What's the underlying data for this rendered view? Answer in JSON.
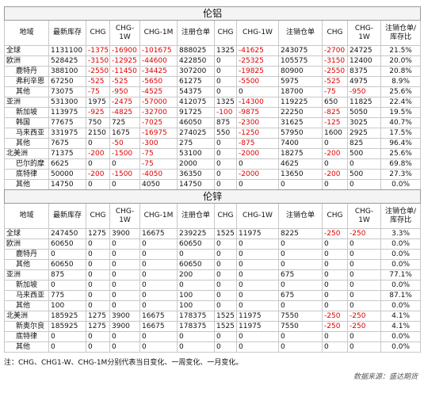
{
  "sections": [
    {
      "title": "伦铝",
      "header": [
        "地域",
        "最新库存",
        "CHG",
        "CHG-1W",
        "CHG-1M",
        "注册仓单",
        "CHG",
        "CHG-1W",
        "注销仓单",
        "CHG",
        "CHG-1W",
        "注销仓单/库存比"
      ],
      "groups": [
        {
          "rows": [
            [
              "全球",
              "1131100",
              "-1375",
              "-16900",
              "-101675",
              "888025",
              "1325",
              "-41625",
              "243075",
              "-2700",
              "24725",
              "21.5%"
            ]
          ]
        },
        {
          "rows": [
            [
              "欧洲",
              "528425",
              "-3150",
              "-12925",
              "-44600",
              "422850",
              "0",
              "-25325",
              "105575",
              "-3150",
              "12400",
              "20.0%"
            ],
            [
              "鹿特丹",
              "388100",
              "-2550",
              "-11450",
              "-34425",
              "307200",
              "0",
              "-19825",
              "80900",
              "-2550",
              "8375",
              "20.8%"
            ],
            [
              "弗利辛恩",
              "67250",
              "-525",
              "-525",
              "-5650",
              "61275",
              "0",
              "-5500",
              "5975",
              "-525",
              "4975",
              "8.9%"
            ],
            [
              "其他",
              "73075",
              "-75",
              "-950",
              "-4525",
              "54375",
              "0",
              "0",
              "18700",
              "-75",
              "-950",
              "25.6%"
            ]
          ]
        },
        {
          "rows": [
            [
              "亚洲",
              "531300",
              "1975",
              "-2475",
              "-57000",
              "412075",
              "1325",
              "-14300",
              "119225",
              "650",
              "11825",
              "22.4%"
            ],
            [
              "新加坡",
              "113975",
              "-925",
              "-4825",
              "-32700",
              "91725",
              "-100",
              "-9875",
              "22250",
              "-825",
              "5050",
              "19.5%"
            ],
            [
              "韩国",
              "77675",
              "750",
              "725",
              "-7025",
              "46050",
              "875",
              "-2300",
              "31625",
              "-125",
              "3025",
              "40.7%"
            ],
            [
              "马来西亚",
              "331975",
              "2150",
              "1675",
              "-16975",
              "274025",
              "550",
              "-1250",
              "57950",
              "1600",
              "2925",
              "17.5%"
            ],
            [
              "其他",
              "7675",
              "0",
              "-50",
              "-300",
              "275",
              "0",
              "-875",
              "7400",
              "0",
              "825",
              "96.4%"
            ]
          ]
        },
        {
          "rows": [
            [
              "北美洲",
              "71375",
              "-200",
              "-1500",
              "-75",
              "53100",
              "0",
              "-2000",
              "18275",
              "-200",
              "500",
              "25.6%"
            ],
            [
              "巴尔的摩",
              "6625",
              "0",
              "0",
              "-75",
              "2000",
              "0",
              "0",
              "4625",
              "0",
              "0",
              "69.8%"
            ],
            [
              "底特律",
              "50000",
              "-200",
              "-1500",
              "-4050",
              "36350",
              "0",
              "-2000",
              "13650",
              "-200",
              "500",
              "27.3%"
            ],
            [
              "其他",
              "14750",
              "0",
              "0",
              "4050",
              "14750",
              "0",
              "0",
              "0",
              "0",
              "0",
              "0.0%"
            ]
          ]
        }
      ]
    },
    {
      "title": "伦锌",
      "header": [
        "地域",
        "最新库存",
        "CHG",
        "CHG-1W",
        "CHG-1M",
        "注册仓单",
        "CHG",
        "CHG-1W",
        "注销仓单",
        "CHG",
        "CHG-1W",
        "注销仓单/库存比"
      ],
      "groups": [
        {
          "rows": [
            [
              "全球",
              "247450",
              "1275",
              "3900",
              "16675",
              "239225",
              "1525",
              "11975",
              "8225",
              "-250",
              "-250",
              "3.3%"
            ]
          ]
        },
        {
          "rows": [
            [
              "欧洲",
              "60650",
              "0",
              "0",
              "0",
              "60650",
              "0",
              "0",
              "0",
              "0",
              "0",
              "0.0%"
            ],
            [
              "鹿特丹",
              "0",
              "0",
              "0",
              "0",
              "0",
              "0",
              "0",
              "0",
              "0",
              "0",
              "0.0%"
            ],
            [
              "其他",
              "60650",
              "0",
              "0",
              "0",
              "60650",
              "0",
              "0",
              "0",
              "0",
              "0",
              "0.0%"
            ]
          ]
        },
        {
          "rows": [
            [
              "亚洲",
              "875",
              "0",
              "0",
              "0",
              "200",
              "0",
              "0",
              "675",
              "0",
              "0",
              "77.1%"
            ],
            [
              "新加坡",
              "0",
              "0",
              "0",
              "0",
              "0",
              "0",
              "0",
              "0",
              "0",
              "0",
              "0.0%"
            ],
            [
              "马来西亚",
              "775",
              "0",
              "0",
              "0",
              "100",
              "0",
              "0",
              "675",
              "0",
              "0",
              "87.1%"
            ],
            [
              "其他",
              "100",
              "0",
              "0",
              "0",
              "100",
              "0",
              "0",
              "0",
              "0",
              "0",
              "0.0%"
            ]
          ]
        },
        {
          "rows": [
            [
              "北美洲",
              "185925",
              "1275",
              "3900",
              "16675",
              "178375",
              "1525",
              "11975",
              "7550",
              "-250",
              "-250",
              "4.1%"
            ],
            [
              "新奥尔良",
              "185925",
              "1275",
              "3900",
              "16675",
              "178375",
              "1525",
              "11975",
              "7550",
              "-250",
              "-250",
              "4.1%"
            ],
            [
              "底特律",
              "0",
              "0",
              "0",
              "0",
              "0",
              "0",
              "0",
              "0",
              "0",
              "0",
              "0.0%"
            ],
            [
              "其他",
              "0",
              "0",
              "0",
              "0",
              "0",
              "0",
              "0",
              "0",
              "0",
              "0",
              "0.0%"
            ]
          ]
        }
      ]
    }
  ],
  "note": "注：CHG、CHG1-W、CHG-1M分别代表当日变化、一周变化、一月变化。",
  "source": "数据来源：盛达期货"
}
